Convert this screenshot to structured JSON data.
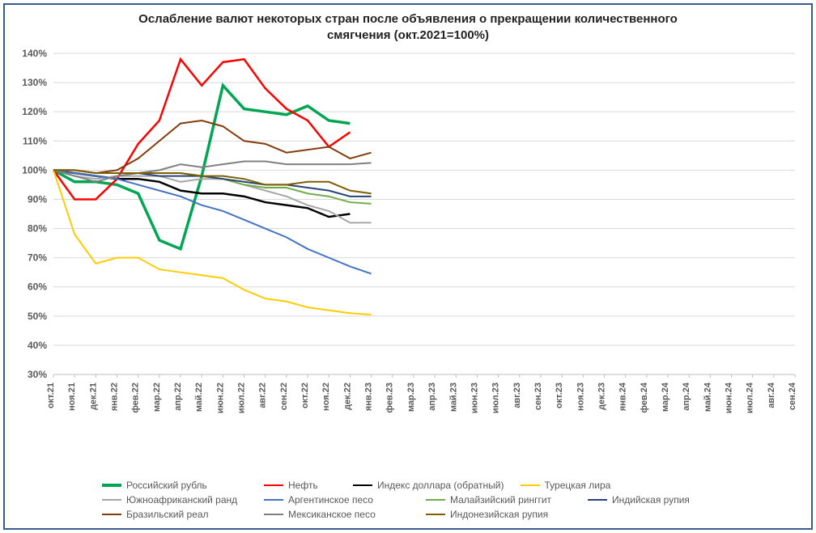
{
  "chart": {
    "type": "line",
    "title_line1": "Ослабление валют некоторых стран после объявления о прекращении количественного",
    "title_line2": "смягчения  (окт.2021=100%)",
    "title_fontsize": 15,
    "background_color": "#ffffff",
    "frame_color": "#395b8f",
    "grid_color": "#d9d9d9",
    "axis_color": "#bfbfbf",
    "yaxis": {
      "min": 30,
      "max": 140,
      "tick_step": 10,
      "format": "percent",
      "label_fontsize": 12,
      "label_color": "#595959"
    },
    "xaxis": {
      "categories": [
        "окт.21",
        "ноя.21",
        "дек.21",
        "янв.22",
        "фев.22",
        "мар.22",
        "апр.22",
        "май.22",
        "июн.22",
        "июл.22",
        "авг.22",
        "сен.22",
        "окт.22",
        "ноя.22",
        "дек.22",
        "янв.23",
        "фев.23",
        "мар.23",
        "апр.23",
        "май.23",
        "июн.23",
        "июл.23",
        "авг.23",
        "сен.23",
        "окт.23",
        "ноя.23",
        "дек.23",
        "янв.24",
        "фев.24",
        "мар.24",
        "апр.24",
        "май.24",
        "июн.24",
        "июл.24",
        "авг.24",
        "сен.24"
      ],
      "label_fontsize": 11,
      "label_color": "#595959",
      "rotation": -90
    },
    "series": [
      {
        "name": "Российский рубль",
        "color": "#00a651",
        "line_width": 3.5,
        "legend_short": false,
        "values": [
          100,
          96,
          96,
          95,
          92,
          76,
          73,
          98,
          129,
          121,
          120,
          119,
          122,
          117,
          116
        ]
      },
      {
        "name": "Нефть",
        "color": "#ff0000",
        "line_width": 2.5,
        "legend_short": true,
        "values": [
          100,
          90,
          90,
          97,
          109,
          117,
          138,
          129,
          137,
          138,
          128,
          121,
          117,
          108,
          113
        ]
      },
      {
        "name": "Индекс доллара (обратный)",
        "color": "#000000",
        "line_width": 2.5,
        "legend_short": false,
        "values": [
          100,
          99,
          98,
          97,
          97,
          96,
          93,
          92,
          92,
          91,
          89,
          88,
          87,
          84,
          85
        ]
      },
      {
        "name": "Турецкая лира",
        "color": "#ffcc00",
        "line_width": 2,
        "legend_short": false,
        "values": [
          100,
          78,
          68,
          70,
          70,
          66,
          65,
          64,
          63,
          59,
          56,
          55,
          53,
          52,
          51,
          50.5
        ]
      },
      {
        "name": "Южноафриканский ранд",
        "color": "#a6a6a6",
        "line_width": 2,
        "legend_short": false,
        "values": [
          100,
          98,
          97,
          98,
          98,
          98,
          96,
          97,
          97,
          95,
          93,
          91,
          88,
          86,
          82,
          82
        ]
      },
      {
        "name": "Аргентинское песо",
        "color": "#4472c4",
        "line_width": 2,
        "legend_short": false,
        "values": [
          100,
          99,
          98,
          97,
          95,
          93,
          91,
          88,
          86,
          83,
          80,
          77,
          73,
          70,
          67,
          64.5
        ]
      },
      {
        "name": "Малайзийский ринггит",
        "color": "#70ad47",
        "line_width": 2,
        "legend_short": false,
        "values": [
          100,
          100,
          99,
          99,
          99,
          99,
          99,
          98,
          97,
          95,
          94,
          94,
          92,
          91,
          89,
          88.5
        ]
      },
      {
        "name": "Индийская рупия",
        "color": "#264478",
        "line_width": 2,
        "legend_short": false,
        "values": [
          100,
          100,
          99,
          99,
          99,
          98,
          98,
          98,
          97,
          96,
          95,
          95,
          94,
          93,
          91,
          91
        ]
      },
      {
        "name": "Бразильский реал",
        "color": "#843c0c",
        "line_width": 2,
        "legend_short": false,
        "values": [
          100,
          100,
          99,
          100,
          104,
          110,
          116,
          117,
          115,
          110,
          109,
          106,
          107,
          108,
          104,
          106
        ]
      },
      {
        "name": "Мексиканское песо",
        "color": "#808080",
        "line_width": 2,
        "legend_short": false,
        "values": [
          100,
          98,
          96,
          98,
          99,
          100,
          102,
          101,
          102,
          103,
          103,
          102,
          102,
          102,
          102,
          102.5
        ]
      },
      {
        "name": "Индонезийская рупия",
        "color": "#7f6000",
        "line_width": 2,
        "legend_short": false,
        "values": [
          100,
          100,
          99,
          99,
          99,
          99,
          99,
          98,
          98,
          97,
          95,
          95,
          96,
          96,
          93,
          92
        ]
      }
    ],
    "legend": {
      "font_size": 12,
      "color": "#595959"
    }
  }
}
